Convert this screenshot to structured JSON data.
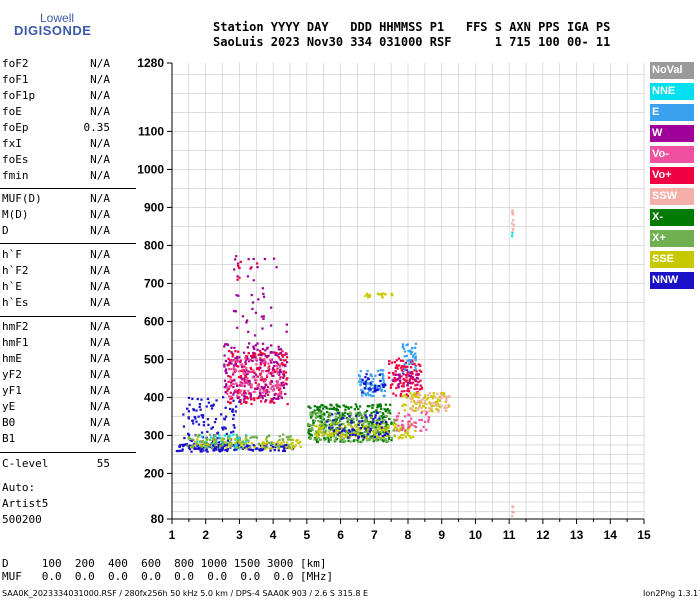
{
  "logo": {
    "line1": "Lowell",
    "line2": "DIGISONDE"
  },
  "header": {
    "line1": "Station YYYY DAY   DDD HHMMSS P1   FFS S AXN PPS IGA PS",
    "line2": "SaoLuis 2023 Nov30 334 031000 RSF      1 715 100 00- 11"
  },
  "params_group1": [
    {
      "name": "foF2",
      "value": "N/A"
    },
    {
      "name": "foF1",
      "value": "N/A"
    },
    {
      "name": "foF1p",
      "value": "N/A"
    },
    {
      "name": "foE",
      "value": "N/A"
    },
    {
      "name": "foEp",
      "value": "0.35"
    },
    {
      "name": "fxI",
      "value": "N/A"
    },
    {
      "name": "foEs",
      "value": "N/A"
    },
    {
      "name": "fmin",
      "value": "N/A"
    }
  ],
  "params_group2": [
    {
      "name": "MUF(D)",
      "value": "N/A"
    },
    {
      "name": "M(D)",
      "value": "N/A"
    },
    {
      "name": "D",
      "value": "N/A"
    }
  ],
  "params_group3": [
    {
      "name": "h`F",
      "value": "N/A"
    },
    {
      "name": "h`F2",
      "value": "N/A"
    },
    {
      "name": "h`E",
      "value": "N/A"
    },
    {
      "name": "h`Es",
      "value": "N/A"
    }
  ],
  "params_group4": [
    {
      "name": "hmF2",
      "value": "N/A"
    },
    {
      "name": "hmF1",
      "value": "N/A"
    },
    {
      "name": "hmE",
      "value": "N/A"
    },
    {
      "name": "yF2",
      "value": "N/A"
    },
    {
      "name": "yF1",
      "value": "N/A"
    },
    {
      "name": "yE",
      "value": "N/A"
    },
    {
      "name": "B0",
      "value": "N/A"
    },
    {
      "name": "B1",
      "value": "N/A"
    }
  ],
  "clevel": {
    "name": "C-level",
    "value": "55"
  },
  "auto": {
    "label": "Auto:",
    "artist": "Artist5",
    "version": "500200"
  },
  "muf_table": {
    "d_row": "D     100  200  400  600  800 1000 1500 3000 [km]",
    "muf_row": "MUF   0.0  0.0  0.0  0.0  0.0  0.0  0.0  0.0 [MHz]"
  },
  "footer": {
    "left": "SAA0K_2023334031000.RSF / 280fx256h 50 kHz 5.0 km / DPS-4 SAA0K 903 / 2.6 S 315.8 E",
    "right": "Ion2Png 1.3.17"
  },
  "legend": [
    {
      "label": "NoVal",
      "color": "#9a9a9a"
    },
    {
      "label": "NNE",
      "color": "#00e0ee"
    },
    {
      "label": "E",
      "color": "#3aa0f0"
    },
    {
      "label": "W",
      "color": "#a0009a"
    },
    {
      "label": "Vo-",
      "color": "#f050a0"
    },
    {
      "label": "Vo+",
      "color": "#f00040"
    },
    {
      "label": "SSW",
      "color": "#f4b0a8"
    },
    {
      "label": "X-",
      "color": "#007a00"
    },
    {
      "label": "X+",
      "color": "#70b050"
    },
    {
      "label": "SSE",
      "color": "#c8c800"
    },
    {
      "label": "NNW",
      "color": "#1a10c8"
    }
  ],
  "chart_data": {
    "type": "scatter",
    "title": "",
    "xlabel": "",
    "ylabel": "",
    "xlim": [
      1,
      15
    ],
    "ylim": [
      80,
      1280
    ],
    "x_ticks": [
      "1",
      "2",
      "3",
      "4",
      "5",
      "6",
      "7",
      "8",
      "9",
      "10",
      "11",
      "12",
      "13",
      "14",
      "15"
    ],
    "y_ticks": [
      {
        "value": 80,
        "label": "80"
      },
      {
        "value": 200,
        "label": "200"
      },
      {
        "value": 300,
        "label": "300"
      },
      {
        "value": 400,
        "label": "400"
      },
      {
        "value": 500,
        "label": "500"
      },
      {
        "value": 600,
        "label": "600"
      },
      {
        "value": 700,
        "label": "700"
      },
      {
        "value": 800,
        "label": "800"
      },
      {
        "value": 900,
        "label": "900"
      },
      {
        "value": 1000,
        "label": "1000"
      },
      {
        "value": 1100,
        "label": "1100"
      },
      {
        "value": 1280,
        "label": "1280"
      }
    ],
    "grid": true,
    "grid_x_step": 0.5,
    "grid_y_values": [
      100,
      125,
      150,
      175,
      200,
      225,
      250,
      275,
      300,
      350,
      400,
      450,
      500,
      550,
      600,
      650,
      700,
      750,
      800,
      850,
      900,
      950,
      1000,
      1050,
      1100,
      1150,
      1200,
      1250
    ],
    "clusters": [
      {
        "polarization": "NNW",
        "xmin": 1.1,
        "xmax": 4.6,
        "ymin": 255,
        "ymax": 275,
        "density": 0.55
      },
      {
        "polarization": "NNW",
        "xmin": 1.3,
        "xmax": 3.0,
        "ymin": 265,
        "ymax": 400,
        "density": 0.12
      },
      {
        "polarization": "NNE",
        "xmin": 1.7,
        "xmax": 3.2,
        "ymin": 262,
        "ymax": 300,
        "density": 0.2
      },
      {
        "polarization": "SSE",
        "xmin": 1.5,
        "xmax": 4.8,
        "ymin": 262,
        "ymax": 290,
        "density": 0.25
      },
      {
        "polarization": "X+",
        "xmin": 1.4,
        "xmax": 4.5,
        "ymin": 265,
        "ymax": 300,
        "density": 0.2
      },
      {
        "polarization": "Vo+",
        "xmin": 2.6,
        "xmax": 4.4,
        "ymin": 380,
        "ymax": 520,
        "density": 0.22
      },
      {
        "polarization": "W",
        "xmin": 2.5,
        "xmax": 4.4,
        "ymin": 390,
        "ymax": 540,
        "density": 0.15
      },
      {
        "polarization": "Vo-",
        "xmin": 2.6,
        "xmax": 4.2,
        "ymin": 400,
        "ymax": 500,
        "density": 0.15
      },
      {
        "polarization": "W",
        "xmin": 2.8,
        "xmax": 4.4,
        "ymin": 560,
        "ymax": 770,
        "density": 0.03
      },
      {
        "polarization": "Vo+",
        "xmin": 2.9,
        "xmax": 3.5,
        "ymin": 700,
        "ymax": 770,
        "density": 0.05
      },
      {
        "polarization": "X-",
        "xmin": 5.0,
        "xmax": 7.5,
        "ymin": 280,
        "ymax": 380,
        "density": 0.3
      },
      {
        "polarization": "X+",
        "xmin": 5.0,
        "xmax": 7.6,
        "ymin": 280,
        "ymax": 360,
        "density": 0.25
      },
      {
        "polarization": "SSE",
        "xmin": 5.2,
        "xmax": 8.2,
        "ymin": 290,
        "ymax": 330,
        "density": 0.28
      },
      {
        "polarization": "NNW",
        "xmin": 5.5,
        "xmax": 7.4,
        "ymin": 290,
        "ymax": 360,
        "density": 0.12
      },
      {
        "polarization": "E",
        "xmin": 6.5,
        "xmax": 7.3,
        "ymin": 400,
        "ymax": 470,
        "density": 0.35
      },
      {
        "polarization": "NNW",
        "xmin": 6.6,
        "xmax": 7.3,
        "ymin": 410,
        "ymax": 460,
        "density": 0.2
      },
      {
        "polarization": "Vo+",
        "xmin": 7.4,
        "xmax": 8.4,
        "ymin": 400,
        "ymax": 500,
        "density": 0.3
      },
      {
        "polarization": "E",
        "xmin": 7.8,
        "xmax": 8.2,
        "ymin": 460,
        "ymax": 540,
        "density": 0.3
      },
      {
        "polarization": "W",
        "xmin": 7.5,
        "xmax": 8.3,
        "ymin": 420,
        "ymax": 470,
        "density": 0.15
      },
      {
        "polarization": "SSE",
        "xmin": 7.8,
        "xmax": 9.2,
        "ymin": 360,
        "ymax": 410,
        "density": 0.3
      },
      {
        "polarization": "SSW",
        "xmin": 8.0,
        "xmax": 9.2,
        "ymin": 360,
        "ymax": 410,
        "density": 0.2
      },
      {
        "polarization": "Vo-",
        "xmin": 7.6,
        "xmax": 8.6,
        "ymin": 310,
        "ymax": 360,
        "density": 0.2
      },
      {
        "polarization": "SSE",
        "xmin": 6.7,
        "xmax": 7.5,
        "ymin": 660,
        "ymax": 672,
        "density": 0.5
      },
      {
        "polarization": "SSW",
        "xmin": 11.05,
        "xmax": 11.12,
        "ymin": 830,
        "ymax": 890,
        "density": 0.6
      },
      {
        "polarization": "NNE",
        "xmin": 11.05,
        "xmax": 11.1,
        "ymin": 815,
        "ymax": 830,
        "density": 0.8
      },
      {
        "polarization": "SSW",
        "xmin": 11.05,
        "xmax": 11.12,
        "ymin": 80,
        "ymax": 125,
        "density": 0.5
      }
    ]
  }
}
